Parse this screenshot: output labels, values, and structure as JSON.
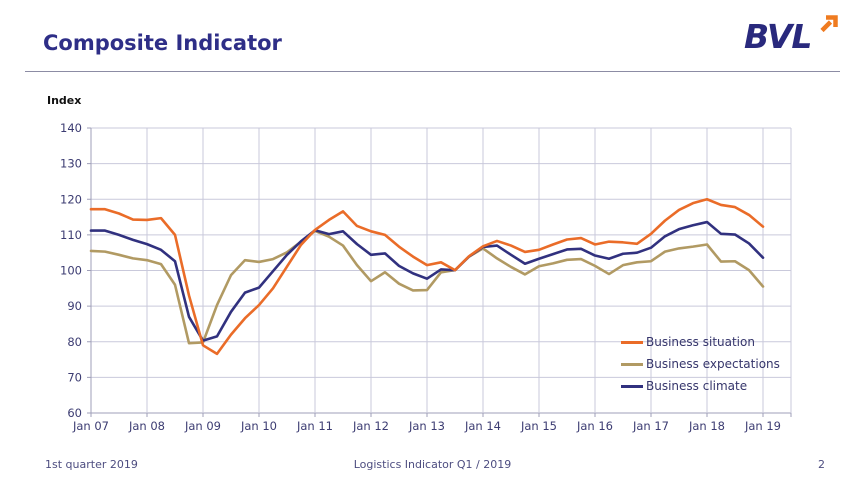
{
  "header": {
    "title": "Composite Indicator",
    "logo_text": "BVL",
    "logo_arrow_color": "#ef7b20"
  },
  "chart_data": {
    "type": "line",
    "ylabel": "Index",
    "ylim": [
      60,
      140
    ],
    "ytick_step": 10,
    "grid": true,
    "legend_position": "inside-bottom-right",
    "x_tick_labels": [
      "Jan 07",
      "Jan 08",
      "Jan 09",
      "Jan 10",
      "Jan 11",
      "Jan 12",
      "Jan 13",
      "Jan 14",
      "Jan 15",
      "Jan 16",
      "Jan 17",
      "Jan 18",
      "Jan 19"
    ],
    "points_per_year": 4,
    "series": [
      {
        "name": "Business situation",
        "color": "#ea6c28",
        "values": [
          117.2,
          117.2,
          116.0,
          114.3,
          114.2,
          114.7,
          110.0,
          93.0,
          79.0,
          76.6,
          82.0,
          86.6,
          90.3,
          95.0,
          101.1,
          107.2,
          111.4,
          114.2,
          116.6,
          112.5,
          111.0,
          110.0,
          106.7,
          103.9,
          101.5,
          102.3,
          100.1,
          104.0,
          106.8,
          108.3,
          107.0,
          105.2,
          105.8,
          107.3,
          108.7,
          109.1,
          107.3,
          108.1,
          107.9,
          107.5,
          110.3,
          114.0,
          117.0,
          118.9,
          120.0,
          118.4,
          117.8,
          115.6,
          112.3
        ]
      },
      {
        "name": "Business expectations",
        "color": "#b19a63",
        "values": [
          105.5,
          105.3,
          104.4,
          103.4,
          102.9,
          101.8,
          96.0,
          79.6,
          79.8,
          90.3,
          98.7,
          102.9,
          102.4,
          103.2,
          105.1,
          108.1,
          111.1,
          109.5,
          107.0,
          101.5,
          97.0,
          99.5,
          96.3,
          94.4,
          94.5,
          99.5,
          100.1,
          103.9,
          106.2,
          103.4,
          101.0,
          98.9,
          101.2,
          102.0,
          103.0,
          103.2,
          101.3,
          99.0,
          101.5,
          102.3,
          102.6,
          105.3,
          106.2,
          106.7,
          107.3,
          102.5,
          102.6,
          100.1,
          95.5
        ]
      },
      {
        "name": "Business climate",
        "color": "#31317f",
        "values": [
          111.2,
          111.2,
          110.0,
          108.6,
          107.4,
          105.8,
          102.6,
          87.0,
          80.3,
          81.5,
          88.4,
          93.8,
          95.2,
          99.8,
          104.4,
          108.2,
          111.3,
          110.2,
          111.0,
          107.4,
          104.4,
          104.8,
          101.3,
          99.2,
          97.7,
          100.3,
          100.1,
          103.9,
          106.6,
          107.0,
          104.4,
          101.9,
          103.3,
          104.6,
          105.9,
          106.1,
          104.2,
          103.3,
          104.7,
          105.0,
          106.4,
          109.6,
          111.6,
          112.7,
          113.6,
          110.3,
          110.1,
          107.6,
          103.6
        ]
      }
    ],
    "colors": {
      "grid": "#c9c9db",
      "axis": "#9f9fb8",
      "tick_label": "#3c3c72"
    }
  },
  "footer": {
    "left": "1st quarter 2019",
    "center": "Logistics Indicator Q1 / 2019",
    "right_page_number": "2"
  }
}
